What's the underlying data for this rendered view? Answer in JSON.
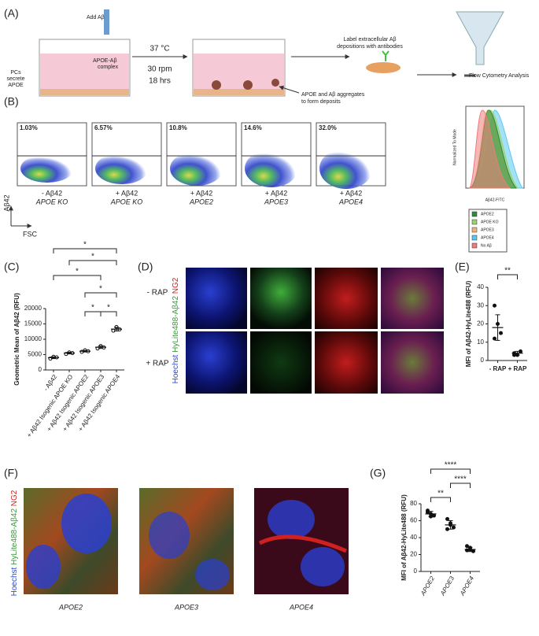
{
  "panel_labels": [
    "(A)",
    "(B)",
    "(C)",
    "(D)",
    "(E)",
    "(F)",
    "(G)"
  ],
  "panel_a": {
    "add": "Add Aβ",
    "complex": [
      "APOE-Aβ",
      "complex"
    ],
    "pcs": [
      "PCs",
      "secrete",
      "APOE"
    ],
    "conditions": [
      "37 °C",
      "30 rpm",
      "18 hrs"
    ],
    "label_step": [
      "Label extracellular Aβ",
      "depositions with antibodies"
    ],
    "aggregate": [
      "APOE and Aβ aggregates",
      "to form deposits"
    ],
    "flow": "Flow Cytometry Analysis"
  },
  "panel_b": {
    "plots": [
      {
        "percent": "1.03%",
        "label": "- Aβ42",
        "genotype": "APOE KO"
      },
      {
        "percent": "6.57%",
        "label": "+ Aβ42",
        "genotype": "APOE KO"
      },
      {
        "percent": "10.8%",
        "label": "+ Aβ42",
        "genotype": "APOE2"
      },
      {
        "percent": "14.6%",
        "label": "+ Aβ42",
        "genotype": "APOE3"
      },
      {
        "percent": "32.0%",
        "label": "+ Aβ42",
        "genotype": "APOE4"
      }
    ],
    "y_axis": "Aβ42",
    "x_axis": "FSC",
    "histogram": {
      "y_label": "Normalized To Mode",
      "x_label": "Aβ42-FITC",
      "legend": [
        {
          "name": "APOE2",
          "color": "#2e8b3a"
        },
        {
          "name": "APOE KO",
          "color": "#9bd36a"
        },
        {
          "name": "APOE3",
          "color": "#f2b27a"
        },
        {
          "name": "APOE4",
          "color": "#5bc8ef"
        },
        {
          "name": "No Aβ",
          "color": "#ef7b7b"
        }
      ]
    }
  },
  "panel_c": {
    "type": "dot",
    "y_label": "Geometric Mean of Aβ42 (RFU)",
    "categories": [
      "- Aβ42",
      "+ Aβ42 Isogenic APOE KO",
      "+ Aβ42 Isogenic APOE2",
      "+ Aβ42 Isogenic APOE3",
      "+ Aβ42 Isogenic APOE4"
    ],
    "points": [
      [
        3700,
        4300,
        4100
      ],
      [
        5200,
        5700,
        5500
      ],
      [
        5900,
        6400,
        6100
      ],
      [
        7000,
        7800,
        7300
      ],
      [
        12800,
        14000,
        13200
      ]
    ],
    "means": [
      4000,
      5500,
      6100,
      7400,
      13300
    ],
    "sd": [
      300,
      250,
      250,
      400,
      600
    ],
    "ylim": [
      0,
      20000
    ],
    "yticks": [
      0,
      5000,
      10000,
      15000,
      20000
    ],
    "comparisons": [
      "*",
      "*",
      "*",
      "*",
      "*",
      "*"
    ]
  },
  "panel_d": {
    "rows": [
      "- RAP",
      "+ RAP"
    ],
    "channels": [
      "Hoechst",
      "HyLite488-Aβ42",
      "NG2"
    ]
  },
  "panel_e": {
    "type": "dot",
    "y_label": "MFI of Aβ42-HyLite488 (RFU)",
    "categories": [
      "- RAP",
      "+ RAP"
    ],
    "points": [
      [
        30,
        20,
        15,
        12
      ],
      [
        4,
        3,
        5,
        3
      ]
    ],
    "means": [
      18,
      4
    ],
    "sd": [
      7,
      1
    ],
    "ylim": [
      0,
      40
    ],
    "yticks": [
      0,
      10,
      20,
      30,
      40
    ],
    "comparisons": [
      "**"
    ]
  },
  "panel_f": {
    "channels": [
      "Hoechst",
      "HyLite488-Aβ42",
      "NG2"
    ],
    "captions": [
      "APOE2",
      "APOE3",
      "APOE4"
    ]
  },
  "panel_g": {
    "type": "dot",
    "y_label": "MFI of Aβ42-HyLite488 (RFU)",
    "categories": [
      "APOE2",
      "APOE3",
      "APOE4"
    ],
    "points": [
      [
        72,
        68,
        66,
        70,
        65
      ],
      [
        62,
        55,
        52,
        50,
        57
      ],
      [
        30,
        26,
        24,
        25,
        28
      ]
    ],
    "means": [
      68,
      55,
      26
    ],
    "sd": [
      3,
      5,
      2.5
    ],
    "ylim": [
      0,
      80
    ],
    "yticks": [
      0,
      20,
      40,
      60,
      80
    ],
    "comparisons": [
      "****",
      "****",
      "**"
    ]
  }
}
